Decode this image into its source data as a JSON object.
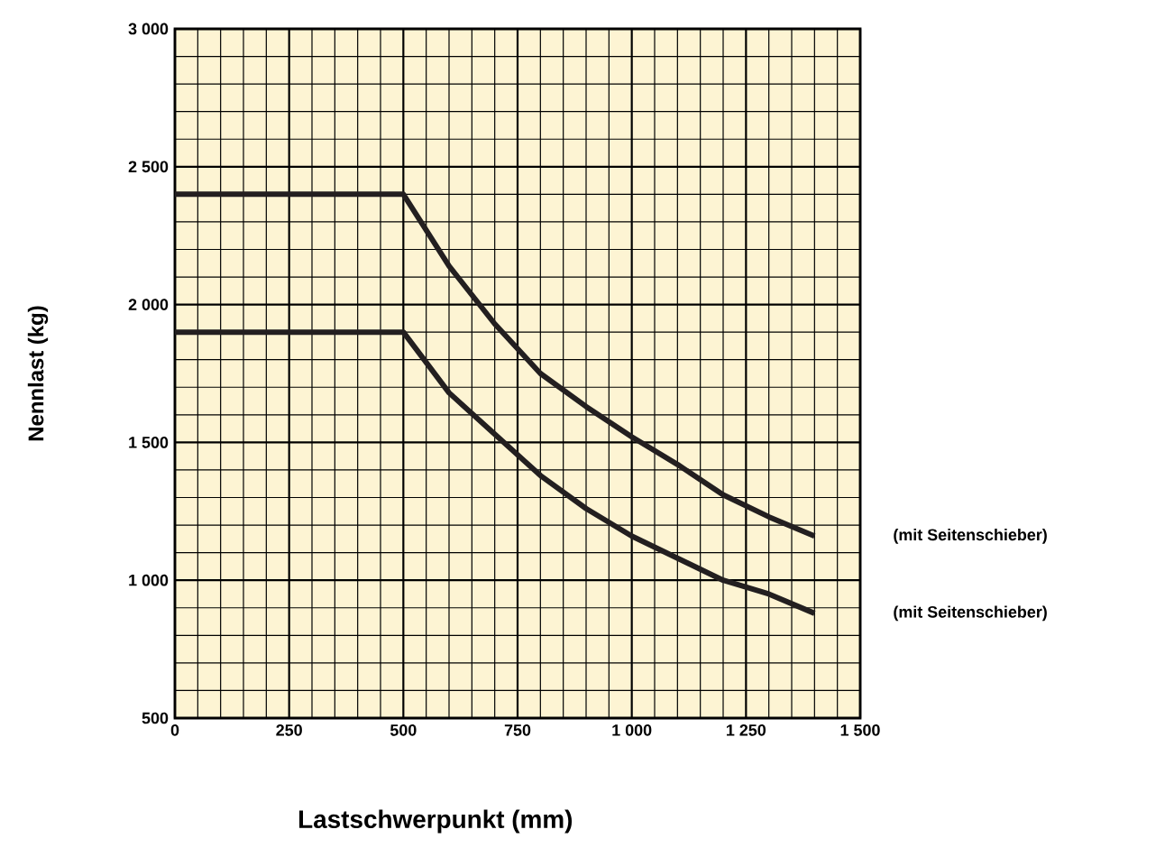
{
  "chart_data": {
    "type": "line",
    "xlabel": "Lastschwerpunkt (mm)",
    "ylabel": "Nennlast (kg)",
    "xlim": [
      0,
      1500
    ],
    "ylim": [
      500,
      3000
    ],
    "xticks": [
      0,
      250,
      500,
      750,
      {
        "value": 1000,
        "label": "1 000"
      },
      {
        "value": 1250,
        "label": "1 250"
      },
      {
        "value": 1500,
        "label": "1 500"
      }
    ],
    "yticks": [
      500,
      {
        "value": 1000,
        "label": "1 000"
      },
      {
        "value": 1500,
        "label": "1 500"
      },
      {
        "value": 2000,
        "label": "2 000"
      },
      {
        "value": 2500,
        "label": "2 500"
      },
      {
        "value": 3000,
        "label": "3 000"
      }
    ],
    "grid": true,
    "marker": "none",
    "line_style": "solid",
    "x": [
      0,
      500,
      600,
      700,
      800,
      900,
      1000,
      1100,
      1200,
      1300,
      1400
    ],
    "series": [
      {
        "name": "(mit Seitenschieber)",
        "color": "#231f20",
        "values": [
          2400,
          2400,
          2140,
          1930,
          1750,
          1630,
          1520,
          1420,
          1310,
          1230,
          1160
        ]
      },
      {
        "name": "(mit Seitenschieber)",
        "color": "#231f20",
        "values": [
          1900,
          1900,
          1680,
          1530,
          1380,
          1260,
          1160,
          1080,
          1000,
          950,
          880
        ]
      }
    ]
  }
}
